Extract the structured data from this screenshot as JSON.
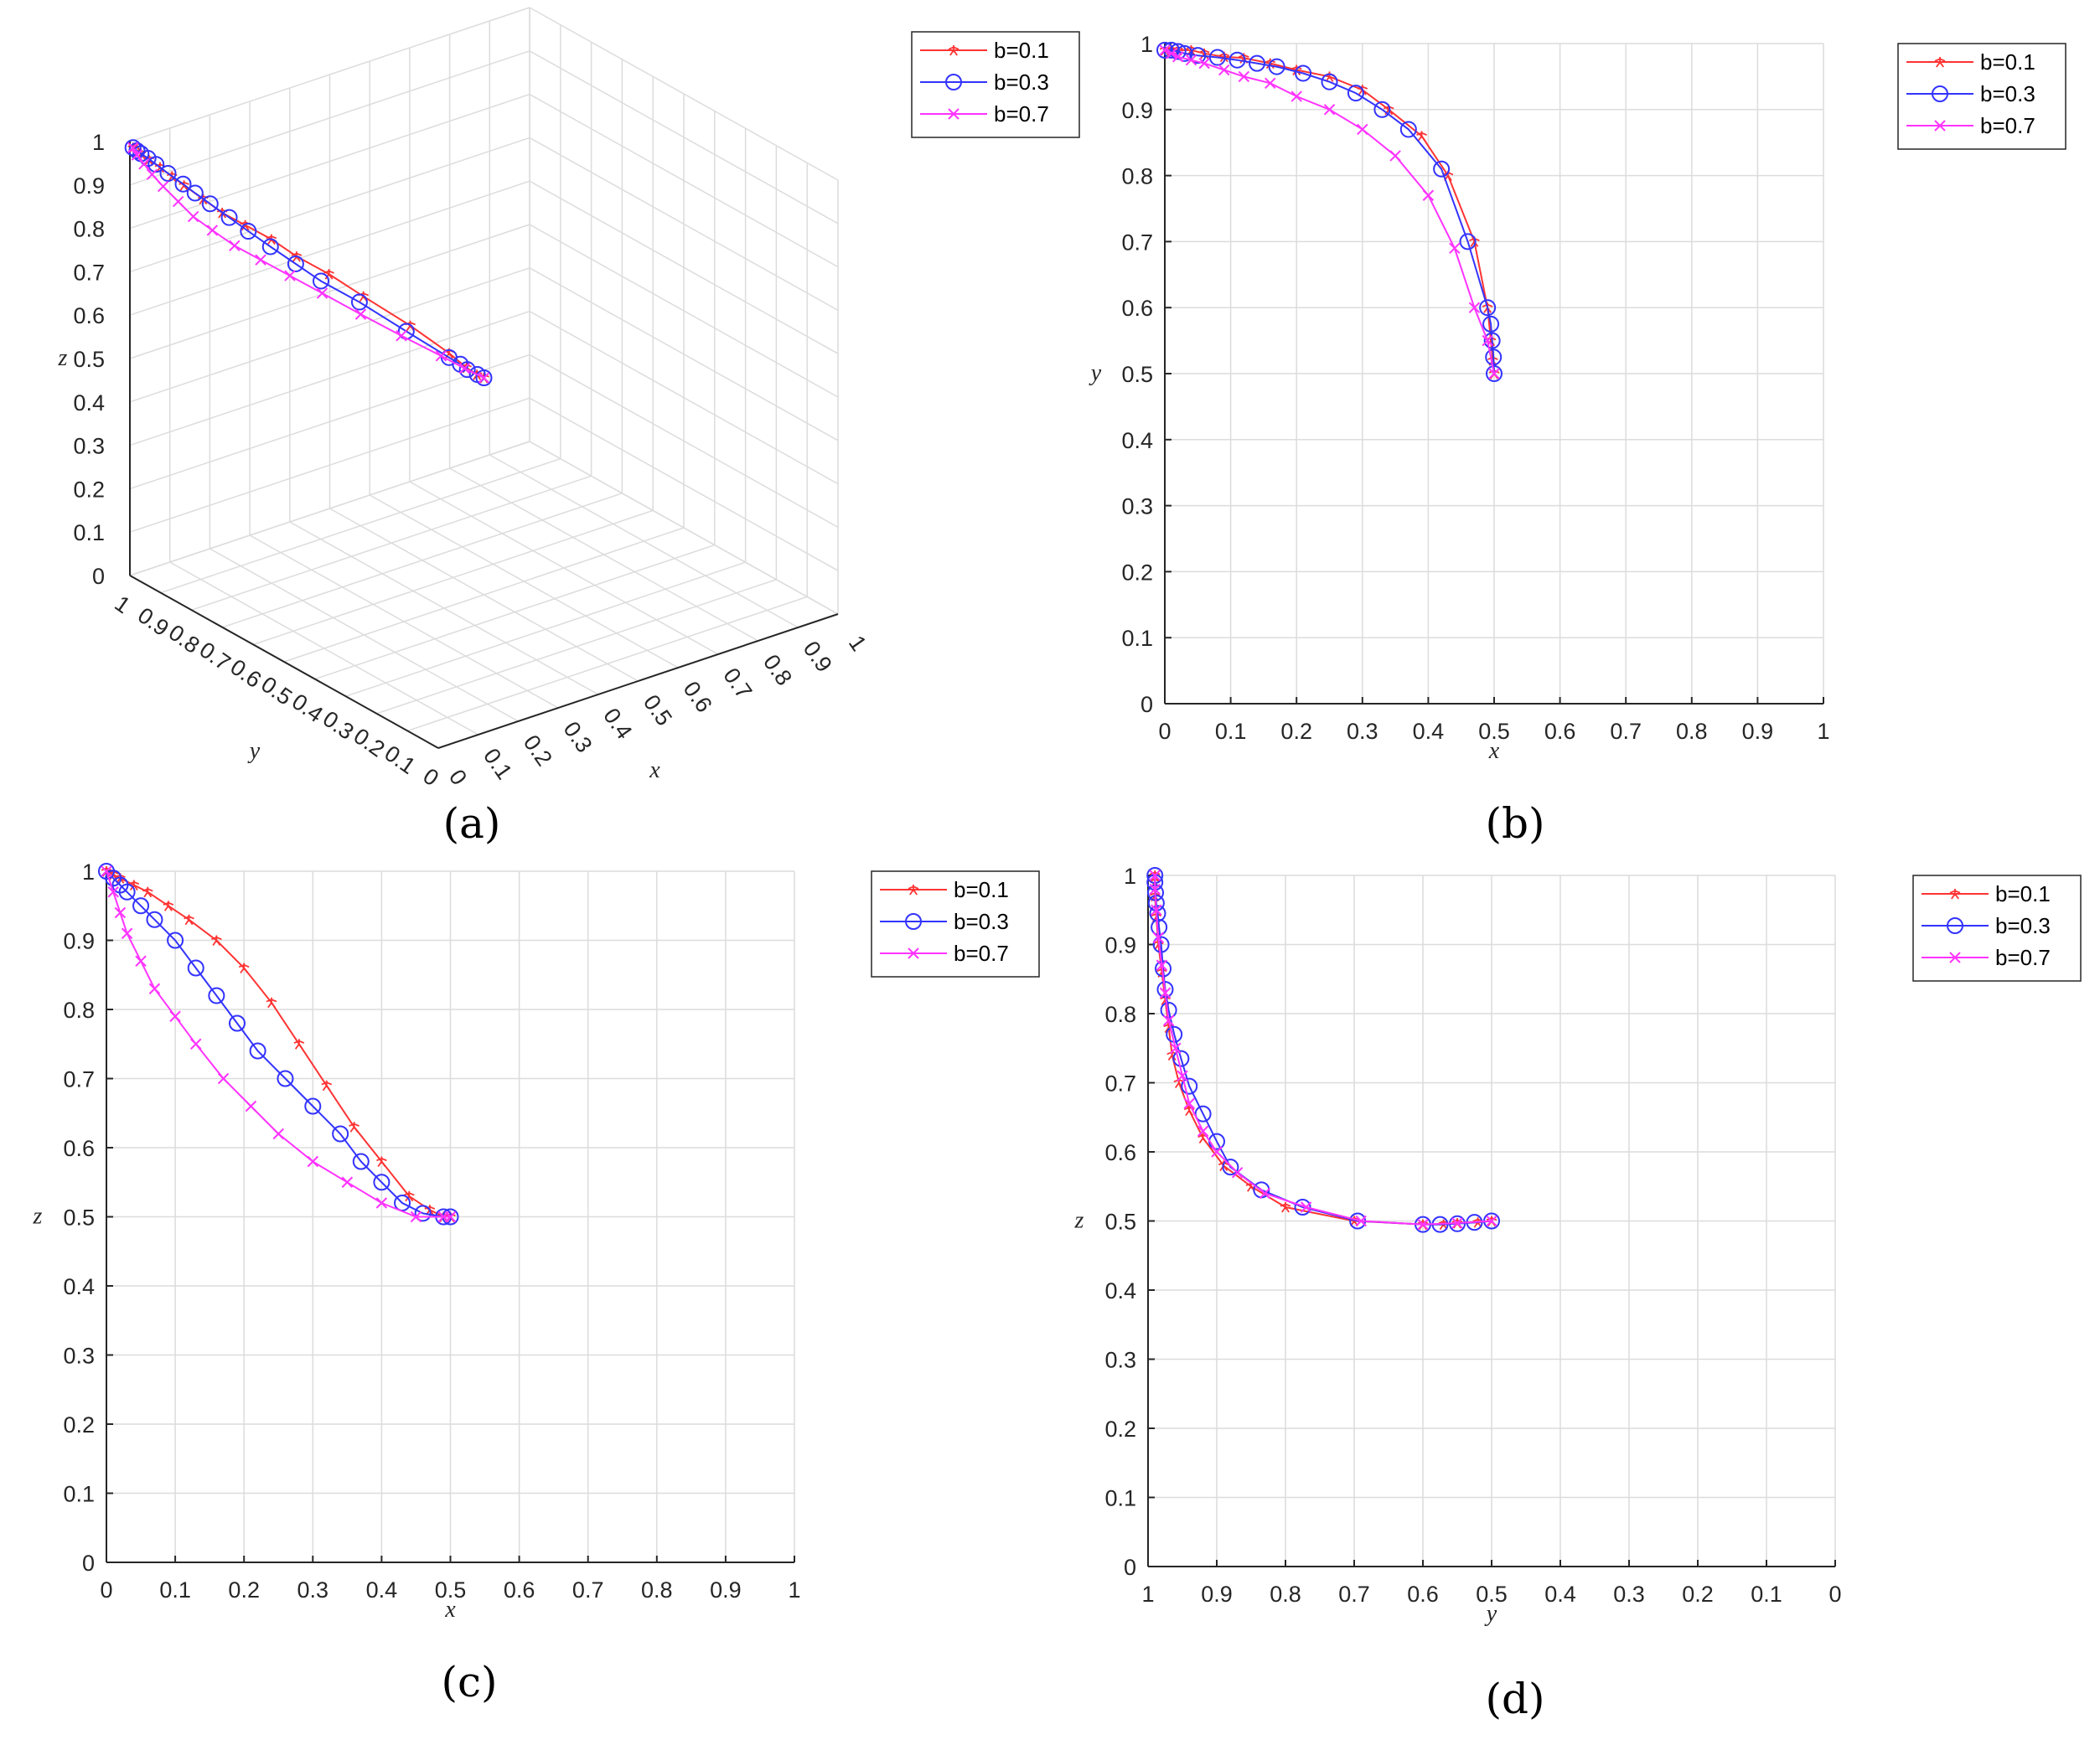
{
  "colors": {
    "b01": "#ff3333",
    "b03": "#3333ff",
    "b07": "#ff33ff"
  },
  "chart_data": [
    {
      "id": "a",
      "type": "line",
      "panel_label": "(a)",
      "projection": "3d",
      "xlabel": "x",
      "ylabel": "y",
      "zlabel": "z",
      "xlim": [
        0,
        1
      ],
      "ylim": [
        0,
        1
      ],
      "zlim": [
        0,
        1
      ],
      "x_ticks": [
        "0",
        "0.1",
        "0.2",
        "0.3",
        "0.4",
        "0.5",
        "0.6",
        "0.7",
        "0.8",
        "0.9",
        "1"
      ],
      "y_ticks": [
        "0",
        "0.1",
        "0.2",
        "0.3",
        "0.4",
        "0.5",
        "0.6",
        "0.7",
        "0.8",
        "0.9",
        "1"
      ],
      "z_ticks": [
        "0",
        "0.1",
        "0.2",
        "0.3",
        "0.4",
        "0.5",
        "0.6",
        "0.7",
        "0.8",
        "0.9",
        "1"
      ],
      "legend": [
        "b=0.1",
        "b=0.3",
        "b=0.7"
      ],
      "legend_position": "top-right",
      "series": [
        {
          "name": "b=0.1",
          "marker": "star",
          "color": "#ff3333",
          "points": [
            [
              0,
              0.99,
              0.99
            ],
            [
              0.01,
              0.99,
              0.99
            ],
            [
              0.02,
              0.99,
              0.97
            ],
            [
              0.04,
              0.99,
              0.95
            ],
            [
              0.06,
              0.98,
              0.93
            ],
            [
              0.09,
              0.98,
              0.9
            ],
            [
              0.12,
              0.98,
              0.87
            ],
            [
              0.16,
              0.97,
              0.83
            ],
            [
              0.2,
              0.96,
              0.79
            ],
            [
              0.25,
              0.95,
              0.75
            ],
            [
              0.3,
              0.93,
              0.71
            ],
            [
              0.34,
              0.9,
              0.67
            ],
            [
              0.39,
              0.86,
              0.63
            ],
            [
              0.43,
              0.8,
              0.59
            ],
            [
              0.47,
              0.7,
              0.55
            ],
            [
              0.49,
              0.6,
              0.52
            ],
            [
              0.495,
              0.55,
              0.505
            ],
            [
              0.498,
              0.52,
              0.5
            ],
            [
              0.5,
              0.5,
              0.5
            ]
          ]
        },
        {
          "name": "b=0.3",
          "marker": "circle",
          "color": "#3333ff",
          "points": [
            [
              0,
              0.99,
              0.99
            ],
            [
              0.01,
              0.99,
              0.98
            ],
            [
              0.02,
              0.99,
              0.97
            ],
            [
              0.03,
              0.98,
              0.96
            ],
            [
              0.05,
              0.98,
              0.94
            ],
            [
              0.08,
              0.98,
              0.91
            ],
            [
              0.11,
              0.97,
              0.88
            ],
            [
              0.14,
              0.97,
              0.85
            ],
            [
              0.17,
              0.96,
              0.82
            ],
            [
              0.21,
              0.95,
              0.78
            ],
            [
              0.25,
              0.94,
              0.74
            ],
            [
              0.29,
              0.92,
              0.7
            ],
            [
              0.33,
              0.89,
              0.66
            ],
            [
              0.37,
              0.86,
              0.62
            ],
            [
              0.42,
              0.8,
              0.58
            ],
            [
              0.46,
              0.7,
              0.54
            ],
            [
              0.49,
              0.6,
              0.51
            ],
            [
              0.495,
              0.57,
              0.505
            ],
            [
              0.497,
              0.55,
              0.5
            ],
            [
              0.499,
              0.52,
              0.5
            ],
            [
              0.5,
              0.5,
              0.5
            ]
          ]
        },
        {
          "name": "b=0.7",
          "marker": "x",
          "color": "#ff33ff",
          "points": [
            [
              0,
              0.99,
              0.99
            ],
            [
              0.01,
              0.99,
              0.97
            ],
            [
              0.02,
              0.98,
              0.95
            ],
            [
              0.04,
              0.98,
              0.92
            ],
            [
              0.06,
              0.97,
              0.89
            ],
            [
              0.09,
              0.96,
              0.85
            ],
            [
              0.12,
              0.95,
              0.81
            ],
            [
              0.16,
              0.94,
              0.77
            ],
            [
              0.2,
              0.92,
              0.73
            ],
            [
              0.25,
              0.9,
              0.69
            ],
            [
              0.3,
              0.87,
              0.65
            ],
            [
              0.35,
              0.83,
              0.61
            ],
            [
              0.4,
              0.77,
              0.57
            ],
            [
              0.44,
              0.69,
              0.54
            ],
            [
              0.47,
              0.6,
              0.52
            ],
            [
              0.49,
              0.55,
              0.505
            ],
            [
              0.5,
              0.5,
              0.5
            ]
          ]
        }
      ]
    },
    {
      "id": "b",
      "type": "line",
      "panel_label": "(b)",
      "xlabel": "x",
      "ylabel": "y",
      "xlim": [
        0,
        1
      ],
      "ylim": [
        0,
        1
      ],
      "x_reversed": false,
      "x_ticks": [
        "0",
        "0.1",
        "0.2",
        "0.3",
        "0.4",
        "0.5",
        "0.6",
        "0.7",
        "0.8",
        "0.9",
        "1"
      ],
      "y_ticks": [
        "0",
        "0.1",
        "0.2",
        "0.3",
        "0.4",
        "0.5",
        "0.6",
        "0.7",
        "0.8",
        "0.9",
        "1"
      ],
      "legend": [
        "b=0.1",
        "b=0.3",
        "b=0.7"
      ],
      "legend_position": "top-right outside",
      "series": [
        {
          "name": "b=0.1",
          "marker": "star",
          "color": "#ff3333",
          "x": [
            0,
            0.01,
            0.02,
            0.04,
            0.06,
            0.09,
            0.12,
            0.16,
            0.2,
            0.25,
            0.3,
            0.34,
            0.39,
            0.43,
            0.47,
            0.49,
            0.495,
            0.498,
            0.5
          ],
          "y": [
            0.99,
            0.99,
            0.99,
            0.99,
            0.985,
            0.98,
            0.978,
            0.97,
            0.96,
            0.95,
            0.93,
            0.9,
            0.86,
            0.8,
            0.7,
            0.6,
            0.55,
            0.52,
            0.5
          ]
        },
        {
          "name": "b=0.3",
          "marker": "circle",
          "color": "#3333ff",
          "x": [
            0,
            0.01,
            0.02,
            0.03,
            0.05,
            0.08,
            0.11,
            0.14,
            0.17,
            0.21,
            0.25,
            0.29,
            0.33,
            0.37,
            0.42,
            0.46,
            0.49,
            0.495,
            0.497,
            0.499,
            0.5
          ],
          "y": [
            0.99,
            0.99,
            0.988,
            0.985,
            0.982,
            0.979,
            0.975,
            0.97,
            0.965,
            0.955,
            0.942,
            0.925,
            0.9,
            0.87,
            0.81,
            0.7,
            0.6,
            0.575,
            0.55,
            0.525,
            0.5
          ]
        },
        {
          "name": "b=0.7",
          "marker": "x",
          "color": "#ff33ff",
          "x": [
            0,
            0.01,
            0.02,
            0.04,
            0.06,
            0.09,
            0.12,
            0.16,
            0.2,
            0.25,
            0.3,
            0.35,
            0.4,
            0.44,
            0.47,
            0.49,
            0.5
          ],
          "y": [
            0.99,
            0.985,
            0.98,
            0.975,
            0.97,
            0.96,
            0.95,
            0.94,
            0.92,
            0.9,
            0.87,
            0.83,
            0.77,
            0.69,
            0.6,
            0.55,
            0.5
          ]
        }
      ]
    },
    {
      "id": "c",
      "type": "line",
      "panel_label": "(c)",
      "xlabel": "x",
      "ylabel": "z",
      "xlim": [
        0,
        1
      ],
      "ylim": [
        0,
        1
      ],
      "x_reversed": false,
      "x_ticks": [
        "0",
        "0.1",
        "0.2",
        "0.3",
        "0.4",
        "0.5",
        "0.6",
        "0.7",
        "0.8",
        "0.9",
        "1"
      ],
      "y_ticks": [
        "0",
        "0.1",
        "0.2",
        "0.3",
        "0.4",
        "0.5",
        "0.6",
        "0.7",
        "0.8",
        "0.9",
        "1"
      ],
      "legend": [
        "b=0.1",
        "b=0.3",
        "b=0.7"
      ],
      "legend_position": "top-right outside",
      "series": [
        {
          "name": "b=0.1",
          "marker": "star",
          "color": "#ff3333",
          "x": [
            0,
            0.01,
            0.02,
            0.04,
            0.06,
            0.09,
            0.12,
            0.16,
            0.2,
            0.24,
            0.28,
            0.32,
            0.36,
            0.4,
            0.44,
            0.47,
            0.49,
            0.5
          ],
          "y": [
            1,
            0.995,
            0.99,
            0.98,
            0.97,
            0.95,
            0.93,
            0.9,
            0.86,
            0.81,
            0.75,
            0.69,
            0.63,
            0.58,
            0.53,
            0.51,
            0.5,
            0.5
          ]
        },
        {
          "name": "b=0.3",
          "marker": "circle",
          "color": "#3333ff",
          "x": [
            0,
            0.01,
            0.02,
            0.03,
            0.05,
            0.07,
            0.1,
            0.13,
            0.16,
            0.19,
            0.22,
            0.26,
            0.3,
            0.34,
            0.37,
            0.4,
            0.43,
            0.46,
            0.49,
            0.5
          ],
          "y": [
            1,
            0.99,
            0.98,
            0.97,
            0.95,
            0.93,
            0.9,
            0.86,
            0.82,
            0.78,
            0.74,
            0.7,
            0.66,
            0.62,
            0.58,
            0.55,
            0.52,
            0.505,
            0.5,
            0.5
          ]
        },
        {
          "name": "b=0.7",
          "marker": "x",
          "color": "#ff33ff",
          "x": [
            0,
            0.01,
            0.02,
            0.03,
            0.05,
            0.07,
            0.1,
            0.13,
            0.17,
            0.21,
            0.25,
            0.3,
            0.35,
            0.4,
            0.45,
            0.49,
            0.5
          ],
          "y": [
            1,
            0.97,
            0.94,
            0.91,
            0.87,
            0.83,
            0.79,
            0.75,
            0.7,
            0.66,
            0.62,
            0.58,
            0.55,
            0.52,
            0.5,
            0.5,
            0.5
          ]
        }
      ]
    },
    {
      "id": "d",
      "type": "line",
      "panel_label": "(d)",
      "xlabel": "y",
      "ylabel": "z",
      "xlim": [
        0,
        1
      ],
      "ylim": [
        0,
        1
      ],
      "x_reversed": true,
      "x_ticks": [
        "0",
        "0.1",
        "0.2",
        "0.3",
        "0.4",
        "0.5",
        "0.6",
        "0.7",
        "0.8",
        "0.9",
        "1"
      ],
      "y_ticks": [
        "0",
        "0.1",
        "0.2",
        "0.3",
        "0.4",
        "0.5",
        "0.6",
        "0.7",
        "0.8",
        "0.9",
        "1"
      ],
      "legend": [
        "b=0.1",
        "b=0.3",
        "b=0.7"
      ],
      "legend_position": "top-right outside",
      "series": [
        {
          "name": "b=0.1",
          "marker": "star",
          "color": "#ff3333",
          "x": [
            0.99,
            0.99,
            0.99,
            0.988,
            0.985,
            0.98,
            0.975,
            0.97,
            0.965,
            0.955,
            0.94,
            0.92,
            0.89,
            0.85,
            0.8,
            0.7,
            0.6,
            0.57,
            0.55,
            0.52,
            0.5
          ],
          "y": [
            1,
            0.99,
            0.97,
            0.94,
            0.9,
            0.86,
            0.82,
            0.78,
            0.74,
            0.7,
            0.66,
            0.62,
            0.58,
            0.55,
            0.52,
            0.5,
            0.495,
            0.495,
            0.497,
            0.498,
            0.5
          ]
        },
        {
          "name": "b=0.3",
          "marker": "circle",
          "color": "#3333ff",
          "x": [
            0.99,
            0.99,
            0.989,
            0.988,
            0.986,
            0.984,
            0.981,
            0.978,
            0.975,
            0.97,
            0.962,
            0.952,
            0.94,
            0.92,
            0.9,
            0.88,
            0.835,
            0.775,
            0.695,
            0.6,
            0.575,
            0.55,
            0.525,
            0.5
          ],
          "y": [
            1,
            0.99,
            0.975,
            0.96,
            0.945,
            0.925,
            0.9,
            0.865,
            0.835,
            0.805,
            0.77,
            0.735,
            0.695,
            0.655,
            0.615,
            0.578,
            0.545,
            0.52,
            0.5,
            0.495,
            0.495,
            0.496,
            0.498,
            0.5
          ]
        },
        {
          "name": "b=0.7",
          "marker": "x",
          "color": "#ff33ff",
          "x": [
            0.99,
            0.99,
            0.988,
            0.985,
            0.98,
            0.975,
            0.97,
            0.96,
            0.95,
            0.94,
            0.92,
            0.9,
            0.87,
            0.83,
            0.77,
            0.69,
            0.6,
            0.55,
            0.5
          ],
          "y": [
            1,
            0.98,
            0.95,
            0.91,
            0.87,
            0.83,
            0.79,
            0.75,
            0.71,
            0.67,
            0.63,
            0.6,
            0.57,
            0.54,
            0.52,
            0.5,
            0.495,
            0.497,
            0.5
          ]
        }
      ]
    }
  ]
}
